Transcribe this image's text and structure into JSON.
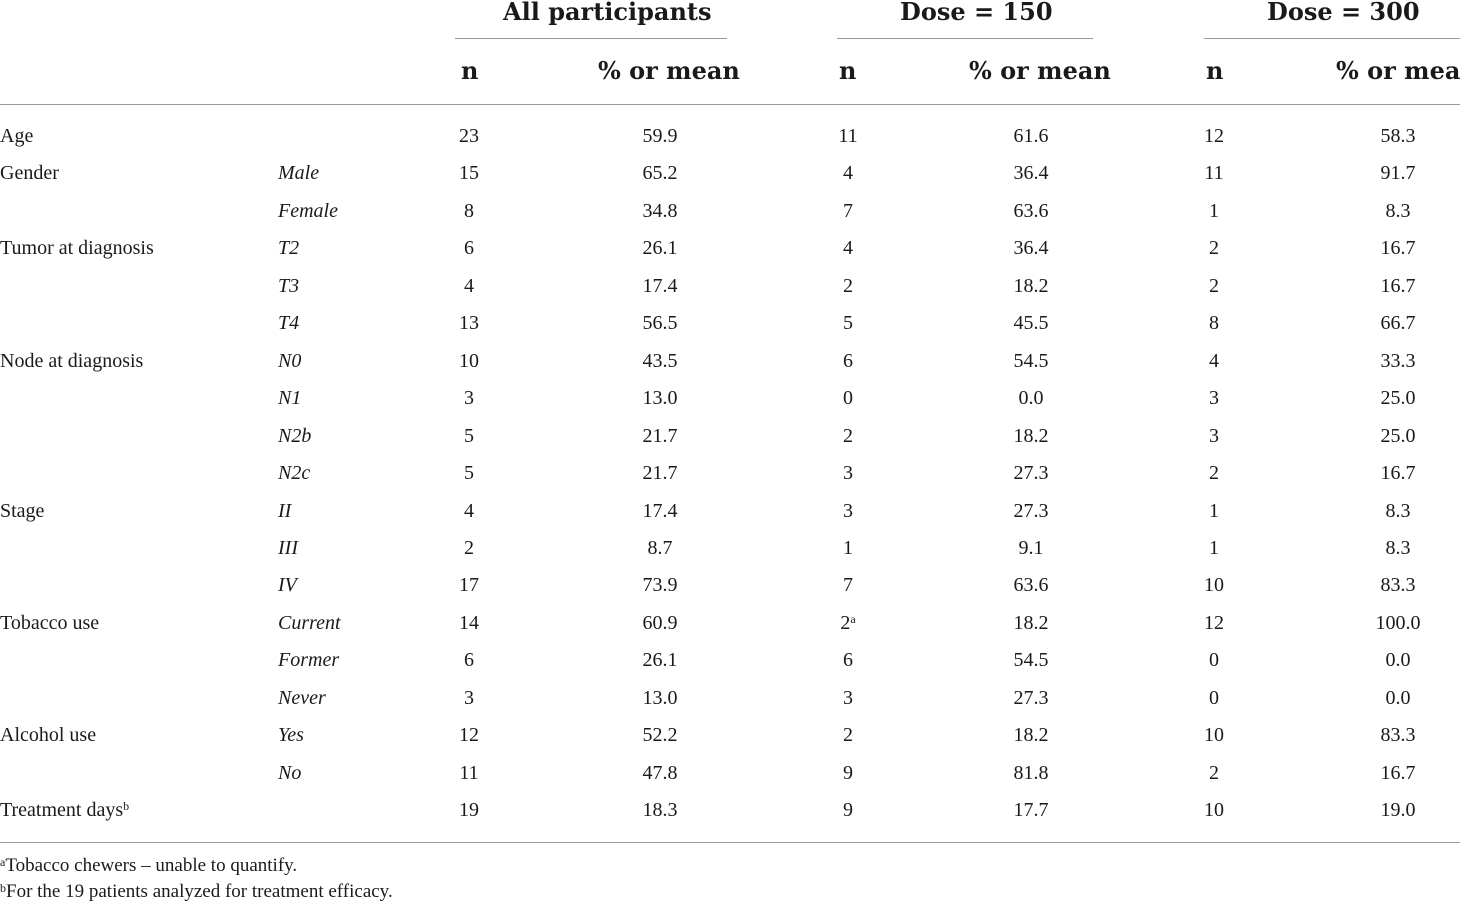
{
  "header": {
    "groups": [
      "All participants",
      "Dose = 150",
      "Dose = 300"
    ],
    "n_label": "n",
    "pct_label": "% or mean"
  },
  "rows": [
    {
      "label": "Age",
      "sublabel": "",
      "n_all": "23",
      "pct_all": "59.9",
      "n_150": "11",
      "pct_150": "61.6",
      "n_300": "12",
      "pct_300": "58.3"
    },
    {
      "label": "Gender",
      "sublabel": "Male",
      "n_all": "15",
      "pct_all": "65.2",
      "n_150": "4",
      "pct_150": "36.4",
      "n_300": "11",
      "pct_300": "91.7"
    },
    {
      "label": "",
      "sublabel": "Female",
      "n_all": "8",
      "pct_all": "34.8",
      "n_150": "7",
      "pct_150": "63.6",
      "n_300": "1",
      "pct_300": "8.3"
    },
    {
      "label": "Tumor at diagnosis",
      "sublabel": "T2",
      "n_all": "6",
      "pct_all": "26.1",
      "n_150": "4",
      "pct_150": "36.4",
      "n_300": "2",
      "pct_300": "16.7"
    },
    {
      "label": "",
      "sublabel": "T3",
      "n_all": "4",
      "pct_all": "17.4",
      "n_150": "2",
      "pct_150": "18.2",
      "n_300": "2",
      "pct_300": "16.7"
    },
    {
      "label": "",
      "sublabel": "T4",
      "n_all": "13",
      "pct_all": "56.5",
      "n_150": "5",
      "pct_150": "45.5",
      "n_300": "8",
      "pct_300": "66.7"
    },
    {
      "label": "Node at diagnosis",
      "sublabel": "N0",
      "n_all": "10",
      "pct_all": "43.5",
      "n_150": "6",
      "pct_150": "54.5",
      "n_300": "4",
      "pct_300": "33.3"
    },
    {
      "label": "",
      "sublabel": "N1",
      "n_all": "3",
      "pct_all": "13.0",
      "n_150": "0",
      "pct_150": "0.0",
      "n_300": "3",
      "pct_300": "25.0"
    },
    {
      "label": "",
      "sublabel": "N2b",
      "n_all": "5",
      "pct_all": "21.7",
      "n_150": "2",
      "pct_150": "18.2",
      "n_300": "3",
      "pct_300": "25.0"
    },
    {
      "label": "",
      "sublabel": "N2c",
      "n_all": "5",
      "pct_all": "21.7",
      "n_150": "3",
      "pct_150": "27.3",
      "n_300": "2",
      "pct_300": "16.7"
    },
    {
      "label": "Stage",
      "sublabel": "II",
      "n_all": "4",
      "pct_all": "17.4",
      "n_150": "3",
      "pct_150": "27.3",
      "n_300": "1",
      "pct_300": "8.3"
    },
    {
      "label": "",
      "sublabel": "III",
      "n_all": "2",
      "pct_all": "8.7",
      "n_150": "1",
      "pct_150": "9.1",
      "n_300": "1",
      "pct_300": "8.3"
    },
    {
      "label": "",
      "sublabel": "IV",
      "n_all": "17",
      "pct_all": "73.9",
      "n_150": "7",
      "pct_150": "63.6",
      "n_300": "10",
      "pct_300": "83.3"
    },
    {
      "label": "Tobacco use",
      "sublabel": "Current",
      "n_all": "14",
      "pct_all": "60.9",
      "n_150": "2",
      "n_150_sup": "a",
      "pct_150": "18.2",
      "n_300": "12",
      "pct_300": "100.0"
    },
    {
      "label": "",
      "sublabel": "Former",
      "n_all": "6",
      "pct_all": "26.1",
      "n_150": "6",
      "pct_150": "54.5",
      "n_300": "0",
      "pct_300": "0.0"
    },
    {
      "label": "",
      "sublabel": "Never",
      "n_all": "3",
      "pct_all": "13.0",
      "n_150": "3",
      "pct_150": "27.3",
      "n_300": "0",
      "pct_300": "0.0"
    },
    {
      "label": "Alcohol use",
      "sublabel": "Yes",
      "n_all": "12",
      "pct_all": "52.2",
      "n_150": "2",
      "pct_150": "18.2",
      "n_300": "10",
      "pct_300": "83.3"
    },
    {
      "label": "",
      "sublabel": "No",
      "n_all": "11",
      "pct_all": "47.8",
      "n_150": "9",
      "pct_150": "81.8",
      "n_300": "2",
      "pct_300": "16.7"
    },
    {
      "label": "Treatment days",
      "label_sup": "b",
      "sublabel": "",
      "n_all": "19",
      "pct_all": "18.3",
      "n_150": "9",
      "pct_150": "17.7",
      "n_300": "10",
      "pct_300": "19.0"
    }
  ],
  "footnotes": [
    {
      "mark": "a",
      "text": "Tobacco chewers – unable to quantify."
    },
    {
      "mark": "b",
      "text": "For the 19 patients analyzed for treatment efficacy."
    }
  ]
}
